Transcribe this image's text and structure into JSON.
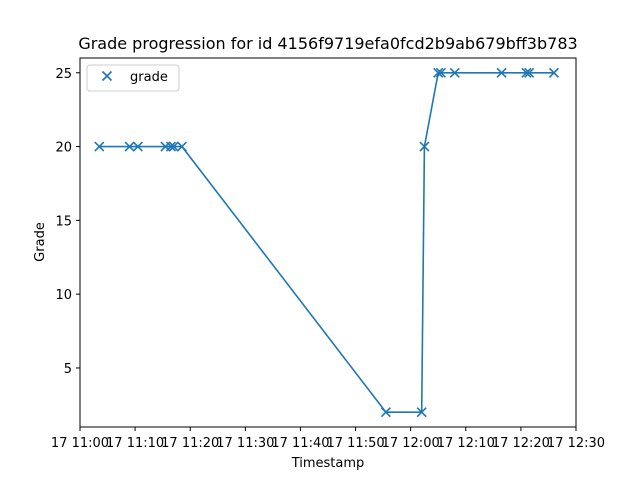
{
  "chart_data": {
    "type": "line",
    "title": "Grade progression for id 4156f9719efa0fcd2b9ab679bff3b783",
    "xlabel": "Timestamp",
    "ylabel": "Grade",
    "x_ticks": [
      "17 11:00",
      "17 11:10",
      "17 11:20",
      "17 11:30",
      "17 11:40",
      "17 11:50",
      "17 12:00",
      "17 12:10",
      "17 12:20",
      "17 12:30"
    ],
    "y_ticks": [
      "5",
      "10",
      "15",
      "20",
      "25"
    ],
    "xlim": [
      "11:00",
      "12:30"
    ],
    "ylim": [
      1,
      26
    ],
    "grid": false,
    "legend": {
      "position": "upper-left",
      "entries": [
        "grade"
      ]
    },
    "series": [
      {
        "name": "grade",
        "marker": "x",
        "color": "#1f77b4",
        "x": [
          "11:03:30",
          "11:09:00",
          "11:10:30",
          "11:15:30",
          "11:16:30",
          "11:17:00",
          "11:18:30",
          "11:55:30",
          "12:02:00",
          "12:02:30",
          "12:05:00",
          "12:05:30",
          "12:08:00",
          "12:16:30",
          "12:21:00",
          "12:21:30",
          "12:26:00"
        ],
        "y": [
          20,
          20,
          20,
          20,
          20,
          20,
          20,
          2,
          2,
          20,
          25,
          25,
          25,
          25,
          25,
          25,
          25
        ]
      }
    ]
  }
}
